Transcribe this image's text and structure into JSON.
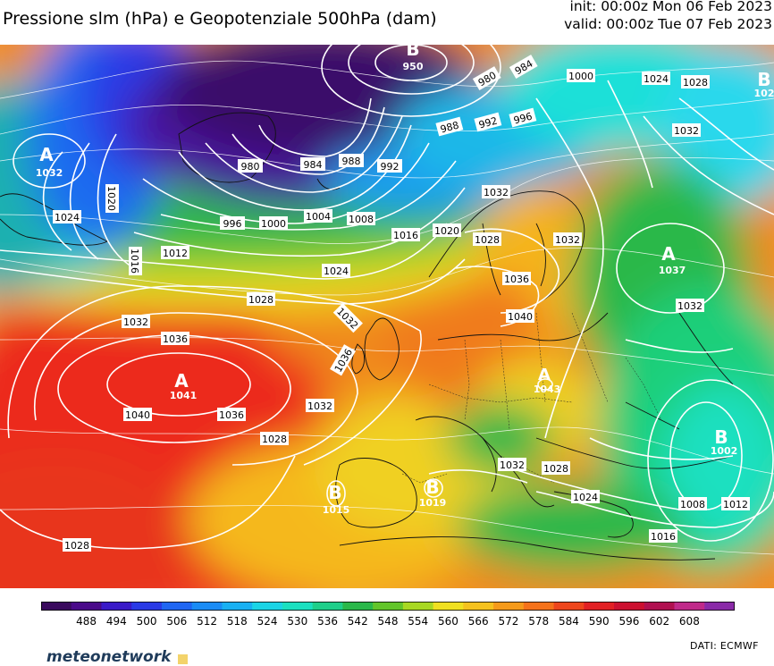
{
  "header": {
    "title": "Pressione slm (hPa) e Geopotenziale 500hPa (dam)",
    "init": "init: 00:00z Mon 06 Feb 2023",
    "valid": "valid: 00:00z Tue 07 Feb 2023"
  },
  "pressure_centers": [
    {
      "type": "B",
      "value": "950"
    },
    {
      "type": "A",
      "value": "1032"
    },
    {
      "type": "A",
      "value": "1041"
    },
    {
      "type": "A",
      "value": "1037"
    },
    {
      "type": "B",
      "value": "102"
    },
    {
      "type": "B",
      "value": "1002"
    },
    {
      "type": "B",
      "value": "1015"
    },
    {
      "type": "B",
      "value": "1019"
    },
    {
      "type": "A",
      "value": "1043"
    }
  ],
  "isobar_labels": [
    "980",
    "984",
    "988",
    "992",
    "996",
    "1000",
    "1004",
    "1008",
    "1012",
    "1016",
    "1020",
    "1024",
    "1028",
    "1032",
    "1036",
    "1040"
  ],
  "colorbar": {
    "ticks": [
      "488",
      "494",
      "500",
      "506",
      "512",
      "518",
      "524",
      "530",
      "536",
      "542",
      "548",
      "554",
      "560",
      "566",
      "572",
      "578",
      "584",
      "590",
      "596",
      "602",
      "608"
    ],
    "colors": [
      "#3a0a5e",
      "#4a0a8a",
      "#3a1ac8",
      "#2a3ae6",
      "#1f66f2",
      "#1a8cf5",
      "#18b0f2",
      "#1ad4e6",
      "#1ae0c0",
      "#1ecf8a",
      "#2ab84a",
      "#62c52a",
      "#a8d822",
      "#f0e020",
      "#f5c21e",
      "#f59a1a",
      "#f5721a",
      "#ee461c",
      "#e22024",
      "#cc1030",
      "#b01050",
      "#c02a8a",
      "#8a2aa8"
    ]
  },
  "brand": "meteonetwork",
  "source": "DATI:  ECMWF"
}
